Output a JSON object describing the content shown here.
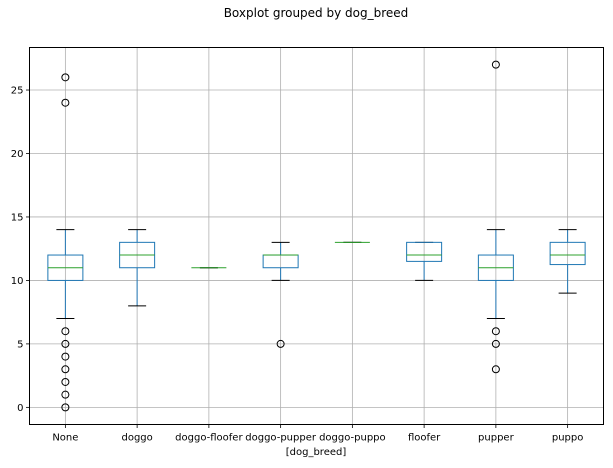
{
  "chart_data": {
    "type": "boxplot",
    "title": "Boxplot grouped by dog_breed",
    "xlabel": "[dog_breed]",
    "ylabel": "",
    "ylim": [
      -1.35,
      28.35
    ],
    "yticks": [
      0,
      5,
      10,
      15,
      20,
      25
    ],
    "grid": true,
    "colors": {
      "box": "#1f77b4",
      "median": "#2ca02c",
      "whisker": "#1f77b4",
      "cap": "#000000",
      "flier": "#000000",
      "grid": "#b0b0b0",
      "axes": "#000000"
    },
    "categories": [
      "None",
      "doggo",
      "doggo-floofer",
      "doggo-pupper",
      "doggo-puppo",
      "floofer",
      "pupper",
      "puppo"
    ],
    "boxes": [
      {
        "category": "None",
        "whisker_low": 7,
        "q1": 10,
        "median": 11,
        "q3": 12,
        "whisker_high": 14,
        "fliers": [
          0,
          1,
          2,
          3,
          4,
          5,
          6,
          24,
          26
        ]
      },
      {
        "category": "doggo",
        "whisker_low": 8,
        "q1": 11,
        "median": 12,
        "q3": 13,
        "whisker_high": 14,
        "fliers": []
      },
      {
        "category": "doggo-floofer",
        "whisker_low": 11,
        "q1": 11,
        "median": 11,
        "q3": 11,
        "whisker_high": 11,
        "fliers": []
      },
      {
        "category": "doggo-pupper",
        "whisker_low": 10,
        "q1": 11,
        "median": 12,
        "q3": 12,
        "whisker_high": 13,
        "fliers": [
          5
        ]
      },
      {
        "category": "doggo-puppo",
        "whisker_low": 13,
        "q1": 13,
        "median": 13,
        "q3": 13,
        "whisker_high": 13,
        "fliers": []
      },
      {
        "category": "floofer",
        "whisker_low": 10,
        "q1": 11.5,
        "median": 12,
        "q3": 13,
        "whisker_high": 13,
        "fliers": []
      },
      {
        "category": "pupper",
        "whisker_low": 7,
        "q1": 10,
        "median": 11,
        "q3": 12,
        "whisker_high": 14,
        "fliers": [
          3,
          5,
          6,
          27
        ]
      },
      {
        "category": "puppo",
        "whisker_low": 9,
        "q1": 11.25,
        "median": 12,
        "q3": 13,
        "whisker_high": 14,
        "fliers": []
      }
    ]
  }
}
